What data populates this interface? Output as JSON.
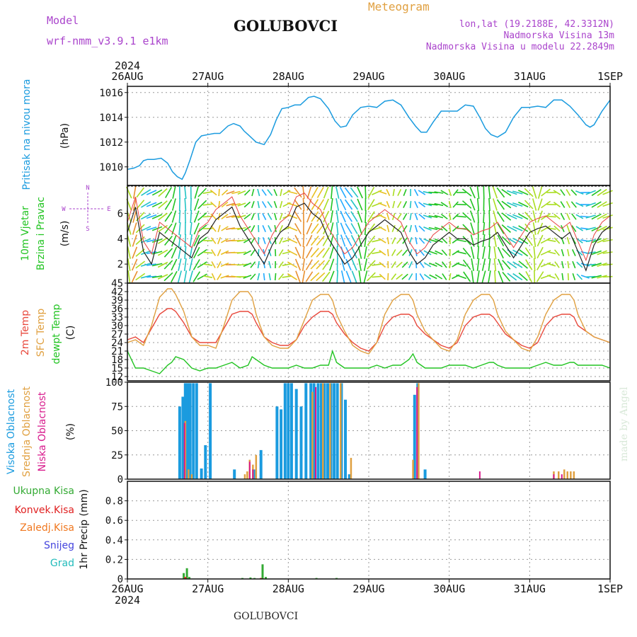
{
  "header": {
    "model_label": "Model",
    "model_name": "wrf-nmm_v3.9.1 e1km",
    "station": "GOLUBOVCI",
    "meteogram": "Meteogram",
    "lonlat": "lon,lat (19.2188E, 42.3312N)",
    "elevation": "Nadmorska Visina 13m",
    "model_elevation": "Nadmorska Visina u modelu 22.2849m",
    "watermark": "made by Angel",
    "footer_station": "GOLUBOVCI"
  },
  "colors": {
    "pressure": "#1a9bdf",
    "temp2m": "#e8483c",
    "sfc_temp": "#e0a040",
    "dewpt": "#22c422",
    "high_cloud": "#1a9bdf",
    "mid_cloud": "#e0a040",
    "low_cloud": "#d81a8c",
    "total_precip": "#33aa33",
    "conv_precip": "#e02020",
    "frz_precip": "#f07820",
    "snow": "#4444dd",
    "hail": "#22bbbb",
    "wind_label": "#22c422",
    "dir_label": "#aa44cc"
  },
  "chart_data": [
    {
      "type": "line",
      "name": "pressure",
      "ylabel_1": "Pritisak na nivou mora",
      "ylabel_2": "(hPa)",
      "ylim": [
        1008.5,
        1016.5
      ],
      "yticks": [
        1010,
        1012,
        1014,
        1016
      ],
      "year": "2024",
      "xticks": [
        "26AUG",
        "27AUG",
        "28AUG",
        "29AUG",
        "30AUG",
        "31AUG",
        "1SEP"
      ],
      "x": [
        0,
        0.08,
        0.15,
        0.2,
        0.25,
        0.33,
        0.42,
        0.5,
        0.56,
        0.62,
        0.68,
        0.72,
        0.78,
        0.85,
        0.92,
        1.0,
        1.08,
        1.15,
        1.25,
        1.32,
        1.4,
        1.45,
        1.5,
        1.6,
        1.7,
        1.78,
        1.85,
        1.92,
        2.0,
        2.08,
        2.15,
        2.25,
        2.32,
        2.4,
        2.5,
        2.58,
        2.65,
        2.72,
        2.8,
        2.9,
        3.0,
        3.1,
        3.2,
        3.3,
        3.4,
        3.5,
        3.58,
        3.65,
        3.72,
        3.8,
        3.9,
        4.0,
        4.1,
        4.2,
        4.3,
        4.38,
        4.45,
        4.52,
        4.6,
        4.7,
        4.8,
        4.9,
        5.0,
        5.1,
        5.2,
        5.3,
        5.4,
        5.5,
        5.6,
        5.7,
        5.75,
        5.8,
        5.9,
        6.0
      ],
      "values": [
        1009.8,
        1009.9,
        1010.1,
        1010.5,
        1010.6,
        1010.6,
        1010.7,
        1010.3,
        1009.6,
        1009.2,
        1009.0,
        1009.5,
        1010.6,
        1012.0,
        1012.5,
        1012.6,
        1012.7,
        1012.7,
        1013.3,
        1013.5,
        1013.3,
        1012.9,
        1012.6,
        1012.0,
        1011.8,
        1012.6,
        1013.8,
        1014.7,
        1014.8,
        1015.0,
        1015.0,
        1015.6,
        1015.7,
        1015.5,
        1014.7,
        1013.7,
        1013.2,
        1013.3,
        1014.2,
        1014.8,
        1014.9,
        1014.8,
        1015.3,
        1015.4,
        1015.0,
        1014.0,
        1013.3,
        1012.8,
        1012.8,
        1013.6,
        1014.5,
        1014.5,
        1014.5,
        1015.0,
        1014.9,
        1014.0,
        1013.1,
        1012.6,
        1012.4,
        1012.8,
        1014.0,
        1014.8,
        1014.8,
        1014.9,
        1014.8,
        1015.4,
        1015.4,
        1014.9,
        1014.2,
        1013.4,
        1013.2,
        1013.4,
        1014.5,
        1015.4
      ]
    },
    {
      "type": "line",
      "name": "wind",
      "ylabel_1": "10m Vjetar",
      "ylabel_2": "Brzina i Pravac",
      "ylabel_3": "(m/s)",
      "compass": {
        "n": "N",
        "s": "S",
        "e": "E",
        "w": "W"
      },
      "ylim": [
        0.5,
        8.2
      ],
      "yticks": [
        2,
        4,
        6
      ],
      "x": [
        0,
        0.1,
        0.2,
        0.3,
        0.4,
        0.5,
        0.6,
        0.7,
        0.8,
        0.9,
        1.0,
        1.1,
        1.2,
        1.3,
        1.4,
        1.5,
        1.6,
        1.7,
        1.8,
        1.9,
        2.0,
        2.1,
        2.2,
        2.3,
        2.4,
        2.5,
        2.6,
        2.7,
        2.8,
        2.9,
        3.0,
        3.1,
        3.2,
        3.3,
        3.4,
        3.5,
        3.6,
        3.7,
        3.8,
        3.9,
        4.0,
        4.1,
        4.2,
        4.3,
        4.4,
        4.5,
        4.6,
        4.7,
        4.8,
        4.9,
        5.0,
        5.1,
        5.2,
        5.3,
        5.4,
        5.5,
        5.6,
        5.7,
        5.8,
        5.9,
        6.0
      ],
      "values": [
        4.5,
        6.5,
        3.0,
        2.0,
        4.5,
        4.0,
        3.5,
        3.0,
        2.5,
        4.0,
        4.5,
        5.5,
        6.0,
        6.5,
        5.0,
        4.0,
        3.0,
        2.0,
        3.5,
        4.5,
        5.0,
        6.5,
        6.8,
        6.0,
        5.5,
        4.0,
        3.0,
        2.0,
        2.5,
        3.5,
        4.5,
        5.0,
        5.5,
        5.0,
        4.5,
        3.0,
        2.0,
        2.5,
        3.5,
        4.0,
        4.5,
        4.0,
        4.0,
        3.5,
        3.8,
        4.0,
        4.5,
        3.5,
        2.5,
        3.5,
        4.5,
        4.8,
        5.0,
        4.5,
        4.0,
        4.5,
        3.0,
        1.5,
        3.5,
        4.5,
        5.0
      ]
    },
    {
      "type": "line",
      "name": "temperature",
      "ylabel_1": "2m Temp",
      "ylabel_2": "SFC Temp",
      "ylabel_3": "dewpt Temp",
      "ylabel_4": "(C)",
      "ylim": [
        10.5,
        45
      ],
      "yticks": [
        12,
        15,
        18,
        21,
        24,
        27,
        30,
        33,
        36,
        39,
        42,
        45
      ],
      "x": [
        0,
        0.1,
        0.2,
        0.3,
        0.4,
        0.5,
        0.55,
        0.6,
        0.7,
        0.8,
        0.9,
        1.0,
        1.1,
        1.2,
        1.3,
        1.4,
        1.5,
        1.55,
        1.6,
        1.7,
        1.8,
        1.9,
        2.0,
        2.1,
        2.2,
        2.3,
        2.4,
        2.5,
        2.55,
        2.6,
        2.7,
        2.8,
        2.9,
        3.0,
        3.1,
        3.2,
        3.3,
        3.4,
        3.5,
        3.55,
        3.6,
        3.7,
        3.8,
        3.9,
        4.0,
        4.1,
        4.2,
        4.3,
        4.4,
        4.5,
        4.55,
        4.6,
        4.7,
        4.8,
        4.9,
        5.0,
        5.1,
        5.2,
        5.3,
        5.4,
        5.5,
        5.55,
        5.6,
        5.7,
        5.8,
        5.9,
        6.0
      ],
      "series": [
        {
          "name": "2m Temp",
          "values": [
            25,
            26,
            24,
            29,
            34,
            36,
            36,
            35,
            31,
            26,
            24,
            24,
            24,
            29,
            34,
            35,
            35,
            34,
            31,
            26,
            24,
            23,
            23,
            25,
            30,
            33,
            35,
            35,
            34,
            31,
            27,
            24,
            22,
            21,
            24,
            30,
            33,
            34,
            34,
            33,
            30,
            27,
            25,
            23,
            22,
            24,
            30,
            33,
            34,
            34,
            33,
            31,
            27,
            25,
            23,
            22,
            24,
            30,
            33,
            34,
            34,
            33,
            30,
            28,
            26,
            25,
            24
          ]
        },
        {
          "name": "SFC Temp",
          "values": [
            24,
            25,
            23,
            30,
            40,
            43,
            43,
            41,
            35,
            26,
            23,
            23,
            22,
            30,
            39,
            42,
            42,
            40,
            34,
            26,
            23,
            22,
            22,
            25,
            32,
            39,
            41,
            41,
            39,
            34,
            28,
            23,
            21,
            20,
            24,
            34,
            39,
            41,
            41,
            39,
            34,
            28,
            25,
            22,
            21,
            25,
            34,
            39,
            41,
            41,
            39,
            34,
            28,
            25,
            22,
            21,
            26,
            34,
            39,
            41,
            41,
            39,
            34,
            28,
            26,
            25,
            24
          ]
        },
        {
          "name": "dewpt Temp",
          "values": [
            21,
            15,
            15,
            14,
            13,
            16,
            17,
            19,
            18,
            15,
            14,
            15,
            15,
            16,
            17,
            15,
            16,
            19,
            18,
            16,
            15,
            15,
            15,
            16,
            15,
            15,
            16,
            16,
            21,
            17,
            15,
            15,
            15,
            15,
            16,
            15,
            16,
            16,
            18,
            20,
            17,
            15,
            15,
            15,
            16,
            16,
            16,
            15,
            16,
            17,
            17,
            16,
            15,
            15,
            15,
            15,
            16,
            17,
            16,
            16,
            17,
            17,
            16,
            16,
            16,
            16,
            15
          ]
        }
      ]
    },
    {
      "type": "bar",
      "name": "clouds",
      "ylabel_1": "Visoka Oblacnost",
      "ylabel_2": "Srednja Oblacnost",
      "ylabel_3": "Niska Oblacnost",
      "ylabel_4": "(%)",
      "ylim": [
        0,
        100
      ],
      "yticks": [
        0,
        25,
        50,
        75,
        100
      ],
      "series": [
        {
          "name": "Visoka Oblacnost",
          "points": [
            [
              0.65,
              75
            ],
            [
              0.69,
              85
            ],
            [
              0.72,
              99
            ],
            [
              0.75,
              99
            ],
            [
              0.78,
              99
            ],
            [
              0.82,
              99
            ],
            [
              0.86,
              99
            ],
            [
              0.92,
              11
            ],
            [
              0.97,
              35
            ],
            [
              1.03,
              99
            ],
            [
              1.33,
              10
            ],
            [
              1.57,
              10
            ],
            [
              1.66,
              30
            ],
            [
              1.86,
              75
            ],
            [
              1.91,
              72
            ],
            [
              1.96,
              99
            ],
            [
              2.0,
              99
            ],
            [
              2.04,
              99
            ],
            [
              2.1,
              93
            ],
            [
              2.16,
              75
            ],
            [
              2.22,
              99
            ],
            [
              2.28,
              99
            ],
            [
              2.32,
              99
            ],
            [
              2.37,
              99
            ],
            [
              2.41,
              99
            ],
            [
              2.45,
              99
            ],
            [
              2.49,
              99
            ],
            [
              2.53,
              99
            ],
            [
              2.57,
              99
            ],
            [
              2.61,
              99
            ],
            [
              2.66,
              99
            ],
            [
              2.71,
              82
            ],
            [
              2.76,
              5
            ],
            [
              3.57,
              87
            ],
            [
              3.61,
              99
            ],
            [
              3.7,
              10
            ]
          ]
        },
        {
          "name": "Srednja Oblacnost",
          "points": [
            [
              0.72,
              60
            ],
            [
              0.76,
              10
            ],
            [
              0.8,
              5
            ],
            [
              1.46,
              5
            ],
            [
              1.49,
              8
            ],
            [
              1.52,
              20
            ],
            [
              1.56,
              15
            ],
            [
              1.6,
              25
            ],
            [
              2.3,
              90
            ],
            [
              2.43,
              99
            ],
            [
              2.52,
              99
            ],
            [
              2.65,
              99
            ],
            [
              2.78,
              22
            ],
            [
              3.55,
              20
            ],
            [
              3.62,
              99
            ],
            [
              5.3,
              8
            ],
            [
              5.36,
              8
            ],
            [
              5.43,
              10
            ],
            [
              5.47,
              8
            ],
            [
              5.51,
              8
            ],
            [
              5.55,
              8
            ]
          ]
        },
        {
          "name": "Niska Oblacnost",
          "points": [
            [
              0.71,
              58
            ],
            [
              1.52,
              18
            ],
            [
              1.56,
              10
            ],
            [
              2.34,
              95
            ],
            [
              3.6,
              95
            ],
            [
              4.38,
              8
            ],
            [
              5.3,
              5
            ],
            [
              5.4,
              5
            ]
          ]
        }
      ]
    },
    {
      "type": "bar",
      "name": "precipitation",
      "ylabel_1": "1hr Precip (mm)",
      "legend": [
        "Ukupna Kisa",
        "Konvek.Kisa",
        "Zaledj.Kisa",
        "Snijeg",
        "Grad"
      ],
      "ylim": [
        0,
        1.0
      ],
      "yticks": [
        0,
        0.2,
        0.4,
        0.6,
        0.8
      ],
      "year": "2024",
      "xticks": [
        "26AUG",
        "27AUG",
        "28AUG",
        "29AUG",
        "30AUG",
        "31AUG",
        "1SEP"
      ],
      "series": [
        {
          "name": "Ukupna Kisa",
          "points": [
            [
              0.7,
              0.06
            ],
            [
              0.74,
              0.11
            ],
            [
              0.77,
              0.02
            ],
            [
              1.43,
              0.01
            ],
            [
              1.53,
              0.015
            ],
            [
              1.58,
              0.01
            ],
            [
              1.68,
              0.15
            ],
            [
              1.72,
              0.02
            ],
            [
              2.35,
              0.01
            ],
            [
              2.6,
              0.01
            ]
          ]
        },
        {
          "name": "Konvek.Kisa",
          "points": [
            [
              0.72,
              0.02
            ],
            [
              1.66,
              0.01
            ]
          ]
        }
      ]
    }
  ]
}
